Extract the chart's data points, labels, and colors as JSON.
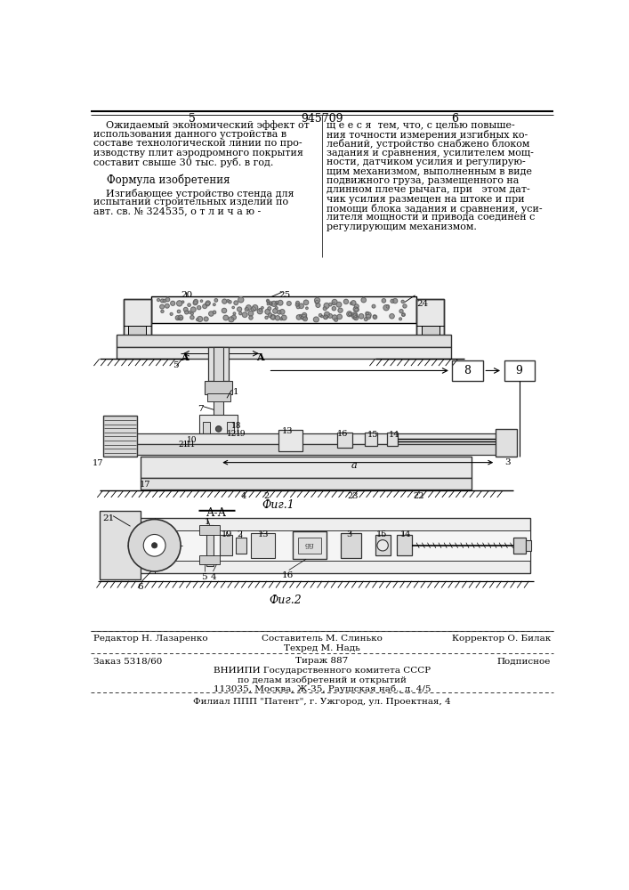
{
  "title": "945709",
  "page_left": "5",
  "page_right": "6",
  "bg_color": "#ffffff",
  "left_col_text": [
    "    Ожидаемый экономический эффект от",
    "использования данного устройства в",
    "составе технологической линии по про-",
    "изводству плит аэродромного покрытия",
    "составит свыше 30 тыс. руб. в год."
  ],
  "formula_title": "Формула изобретения",
  "formula_text": [
    "    Изгибающее устройство стенда для",
    "испытаний строительных изделий по",
    "авт. св. № 324535, о т л и ч а ю -"
  ],
  "right_col_text": [
    "щ е е с я  тем, что, с целью повыше-",
    "ния точности измерения изгибных ко-",
    "лебаний, устройство снабжено блоком",
    "задания и сравнения, усилителем мощ-",
    "ности, датчиком усилия и регулирую-",
    "щим механизмом, выполненным в виде",
    "подвижного груза, размещенного на",
    "длинном плече рычага, при   этом дат-",
    "чик усилия размещен на штоке и при",
    "помощи блока задания и сравнения, уси-",
    "лителя мощности и привода соединен с",
    "регулирующим механизмом."
  ],
  "fig1_label": "Фиг.1",
  "fig2_label": "Фиг.2",
  "section_label": "А-А",
  "ed_line1_l": "Редактор Н. Лазаренко",
  "ed_line1_c1": "Составитель М. Слинько",
  "ed_line1_r": "Корректор О. Билак",
  "ed_line2_c": "Техред М. Надь",
  "order": "Заказ 5318/60",
  "tirazh": "Тираж 887",
  "podpisnoe": "Подписное",
  "vnipi1": "ВНИИПИ Государственного комитета СССР",
  "vnipi2": "по делам изобретений и открытий",
  "vnipi3": "113035, Москва, Ж-35, Раушская наб., д. 4/5",
  "filial": "Филиал ППП \"Патент\", г. Ужгород, ул. Проектная, 4"
}
